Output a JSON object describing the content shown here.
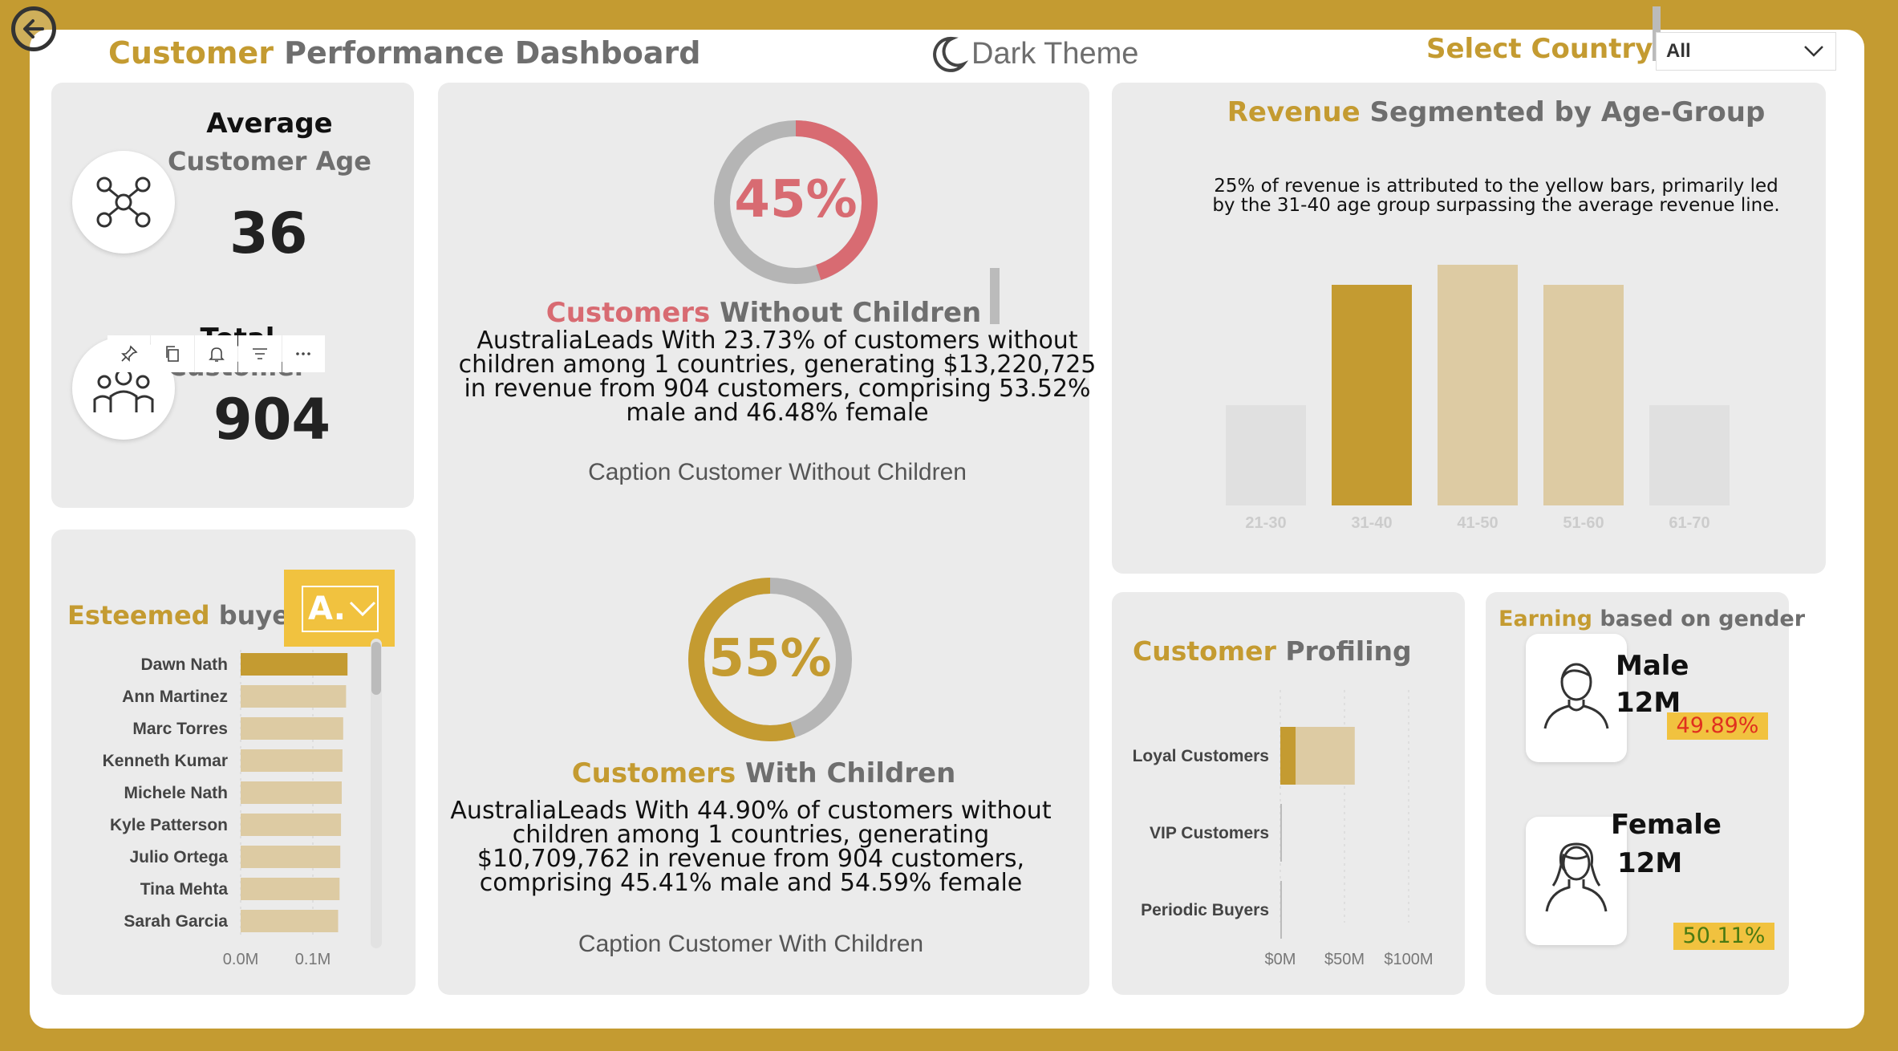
{
  "header": {
    "title_accent": "Customer",
    "title_rest": " Performance Dashboard",
    "theme_toggle_label": "Dark Theme",
    "select_country_label": "Select Country",
    "select_country_value": "All"
  },
  "kpi": {
    "avg_age_line1": "Average",
    "avg_age_line2": "Customer Age",
    "avg_age_value": "36",
    "total_line1": "Total",
    "total_line2": "Customer",
    "total_value": "904"
  },
  "esteemed_buyers": {
    "title_accent": "Esteemed",
    "title_rest": " buyers",
    "sort_button_label": "A.",
    "names": [
      "Dawn Nath",
      "Ann Martinez",
      "Marc Torres",
      "Kenneth Kumar",
      "Michele Nath",
      "Kyle Patterson",
      "Julio Ortega",
      "Tina Mehta",
      "Sarah Garcia"
    ],
    "values_m": [
      0.148,
      0.146,
      0.142,
      0.141,
      0.14,
      0.139,
      0.138,
      0.137,
      0.135
    ],
    "axis_ticks": [
      "0.0M",
      "0.1M"
    ],
    "colors": {
      "highlight": "#c49b31",
      "base": "#ddcba3"
    }
  },
  "without_children": {
    "percent": 45,
    "percent_label": "45%",
    "title_accent": "Customers",
    "title_rest": " Without Children",
    "lines": [
      "AustraliaLeads With 23.73% of customers without",
      "children among 1 countries, generating $13,220,725",
      "in revenue from 904 customers, comprising 53.52%",
      "male and 46.48% female"
    ],
    "caption": "Caption Customer Without Children",
    "color": "#d86b72"
  },
  "with_children": {
    "percent": 55,
    "percent_label": "55%",
    "title_accent": "Customers",
    "title_rest": " With Children",
    "lines": [
      "AustraliaLeads With 44.90% of customers without",
      "children among 1 countries, generating",
      "$10,709,762 in revenue from 904 customers,",
      "comprising 45.41% male and 54.59% female"
    ],
    "caption": "Caption Customer With Children",
    "color": "#c49b31"
  },
  "age_group": {
    "title_accent": "Revenue",
    "title_rest": " Segmented by Age-Group",
    "note_line1": "25% of revenue is attributed to the yellow bars, primarily led",
    "note_line2": "by the 31-40 age group surpassing the average revenue line."
  },
  "profiling": {
    "title_accent": "Customer",
    "title_rest": " Profiling",
    "axis_ticks": [
      "$0M",
      "$50M",
      "$100M"
    ]
  },
  "gender": {
    "title_accent": "Earning",
    "title_rest": " based on gender",
    "male_label": "Male",
    "male_value": "12M",
    "male_pct": "49.89%",
    "female_label": "Female",
    "female_value": "12M",
    "female_pct": "50.11%"
  },
  "chart_data": [
    {
      "type": "bar",
      "title": "Revenue Segmented by Age-Group",
      "categories": [
        "21-30",
        "31-40",
        "41-50",
        "51-60",
        "61-70"
      ],
      "values": [
        2.5,
        5.5,
        6.0,
        5.5,
        2.5
      ],
      "highlight": "31-40",
      "colors": {
        "highlight": "#c49b31",
        "mid": "#ddcba3",
        "low": "#e0e0e0"
      }
    },
    {
      "type": "bar",
      "orientation": "horizontal",
      "title": "Customer Profiling",
      "categories": [
        "Loyal Customers",
        "VIP Customers",
        "Periodic Buyers"
      ],
      "series": [
        {
          "values": [
            12,
            1,
            0.8
          ]
        },
        {
          "values": [
            46,
            0,
            0
          ]
        }
      ],
      "xlim": [
        0,
        110
      ],
      "axis_ticks": [
        "$0M",
        "$50M",
        "$100M"
      ]
    }
  ]
}
